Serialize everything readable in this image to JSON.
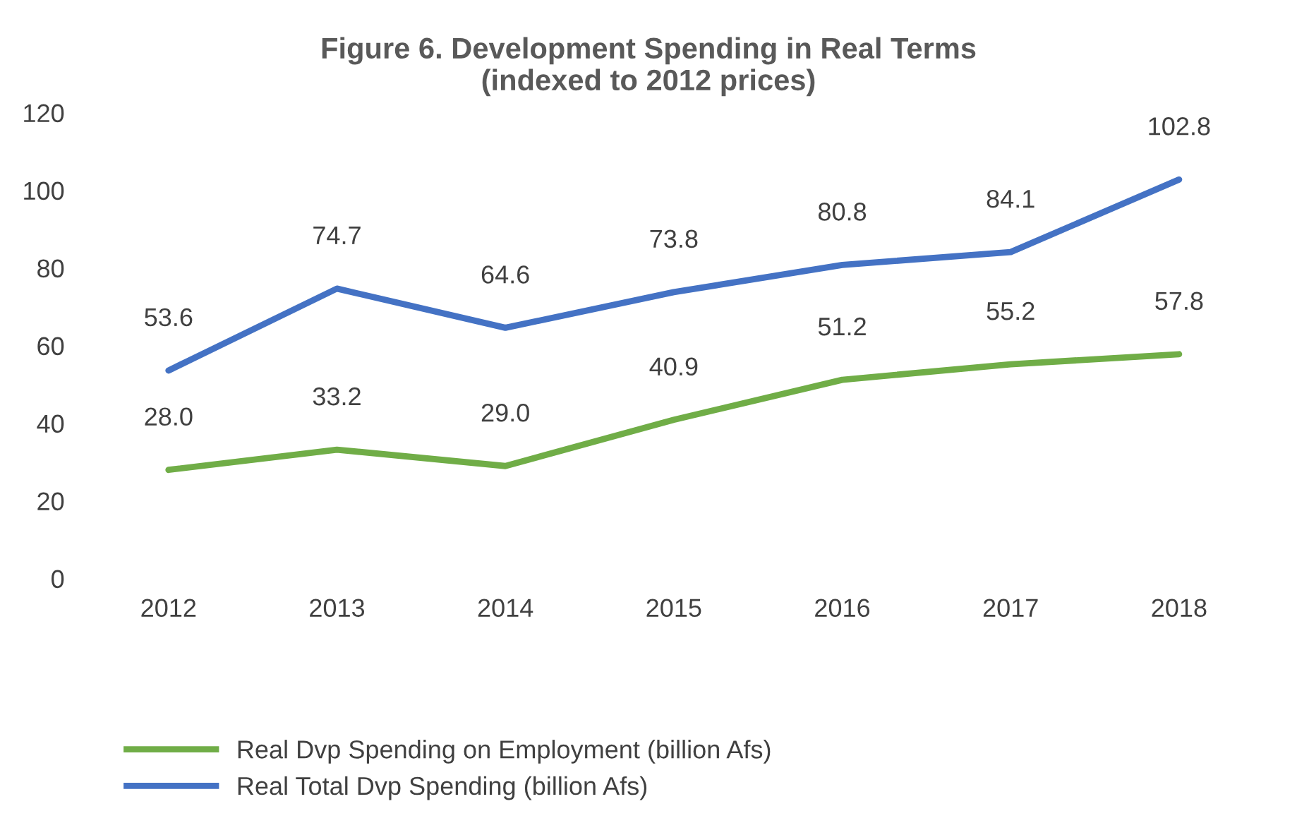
{
  "chart_data": {
    "type": "line",
    "title": "Figure 6. Development Spending in Real Terms\n(indexed to 2012 prices)",
    "categories": [
      "2012",
      "2013",
      "2014",
      "2015",
      "2016",
      "2017",
      "2018"
    ],
    "series": [
      {
        "name": "Real Dvp Spending on Employment (billion Afs)",
        "color": "#70ad47",
        "values": [
          28.0,
          33.2,
          29.0,
          40.9,
          51.2,
          55.2,
          57.8
        ],
        "value_labels": [
          "28.0",
          "33.2",
          "29.0",
          "40.9",
          "51.2",
          "55.2",
          "57.8"
        ]
      },
      {
        "name": "Real Total Dvp Spending (billion Afs)",
        "color": "#4472c4",
        "values": [
          53.6,
          74.7,
          64.6,
          73.8,
          80.8,
          84.1,
          102.8
        ],
        "value_labels": [
          "53.6",
          "74.7",
          "64.6",
          "73.8",
          "80.8",
          "84.1",
          "102.8"
        ]
      }
    ],
    "ylim": [
      0,
      120
    ],
    "yticks": [
      0,
      20,
      40,
      60,
      80,
      100,
      120
    ],
    "grid": false,
    "legend": "bottom",
    "marker": "none",
    "line_style": "solid"
  }
}
